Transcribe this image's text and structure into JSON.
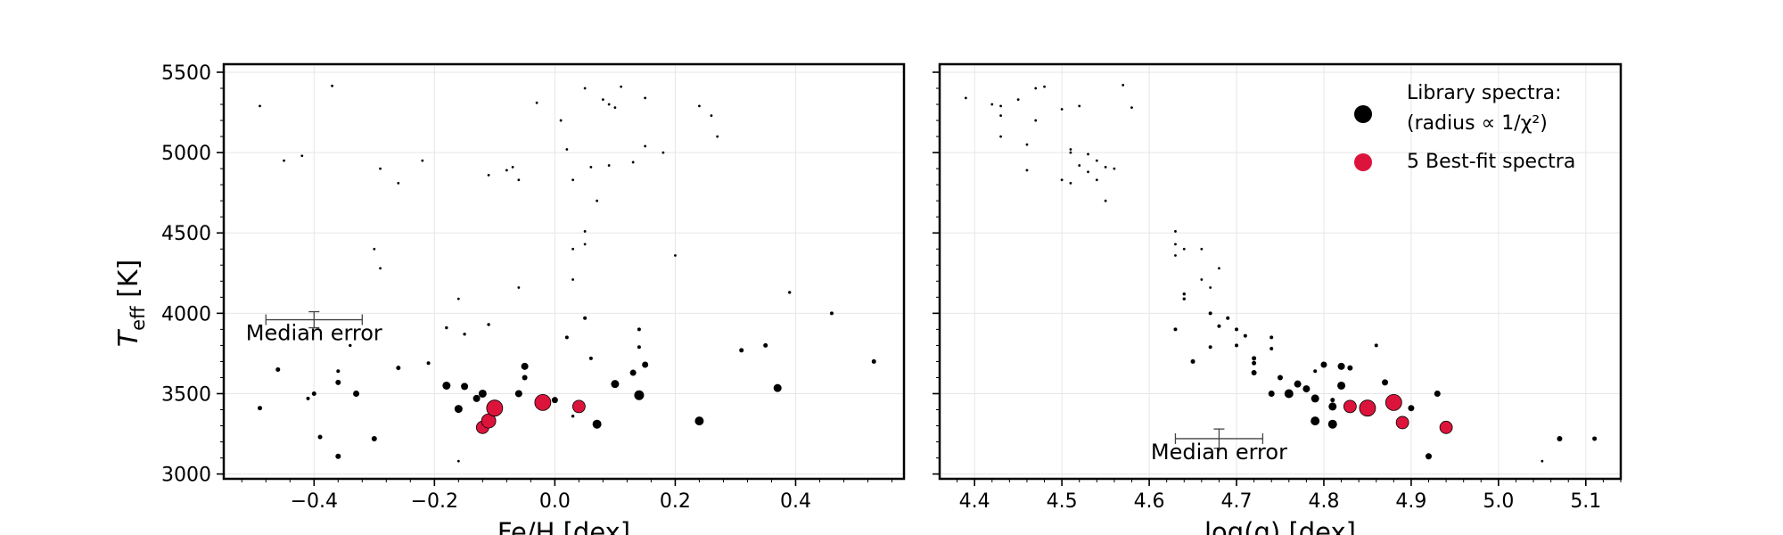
{
  "chart_data": [
    {
      "type": "scatter",
      "xlabel": "Fe/H [dex]",
      "ylabel": "T_eff [K]",
      "xlim": [
        -0.55,
        0.58
      ],
      "ylim": [
        2970,
        5550
      ],
      "x_ticks": [
        -0.4,
        -0.2,
        0.0,
        0.2,
        0.4
      ],
      "x_tick_labels": [
        "−0.4",
        "−0.2",
        "0.0",
        "0.2",
        "0.4"
      ],
      "y_ticks": [
        3000,
        3500,
        4000,
        4500,
        5000,
        5500
      ],
      "y_tick_labels": [
        "3000",
        "3500",
        "4000",
        "4500",
        "5000",
        "5500"
      ],
      "grid": true,
      "annotation": "Median error",
      "median_error": {
        "x": -0.4,
        "y": 3960,
        "xerr": 0.08,
        "yerr": 50
      },
      "series": [
        {
          "name": "Library spectra:",
          "color": "#000000",
          "points": [
            {
              "x": -0.49,
              "y": 5290,
              "r": 1.4
            },
            {
              "x": -0.37,
              "y": 5415,
              "r": 1.4
            },
            {
              "x": -0.45,
              "y": 4950,
              "r": 1.4
            },
            {
              "x": -0.42,
              "y": 4980,
              "r": 1.4
            },
            {
              "x": -0.29,
              "y": 4900,
              "r": 1.4
            },
            {
              "x": -0.26,
              "y": 4810,
              "r": 1.4
            },
            {
              "x": -0.22,
              "y": 4950,
              "r": 1.4
            },
            {
              "x": -0.3,
              "y": 4400,
              "r": 1.4
            },
            {
              "x": -0.29,
              "y": 4280,
              "r": 1.4
            },
            {
              "x": -0.11,
              "y": 4860,
              "r": 1.4
            },
            {
              "x": -0.08,
              "y": 4890,
              "r": 1.4
            },
            {
              "x": -0.07,
              "y": 4910,
              "r": 1.4
            },
            {
              "x": -0.06,
              "y": 4830,
              "r": 1.4
            },
            {
              "x": -0.03,
              "y": 5310,
              "r": 1.4
            },
            {
              "x": 0.01,
              "y": 5200,
              "r": 1.4
            },
            {
              "x": 0.02,
              "y": 5020,
              "r": 1.4
            },
            {
              "x": 0.03,
              "y": 4830,
              "r": 1.4
            },
            {
              "x": 0.05,
              "y": 5400,
              "r": 1.4
            },
            {
              "x": 0.08,
              "y": 5330,
              "r": 1.4
            },
            {
              "x": 0.09,
              "y": 5300,
              "r": 1.4
            },
            {
              "x": 0.1,
              "y": 5280,
              "r": 1.4
            },
            {
              "x": 0.11,
              "y": 5410,
              "r": 1.4
            },
            {
              "x": 0.06,
              "y": 4910,
              "r": 1.4
            },
            {
              "x": 0.09,
              "y": 4920,
              "r": 1.4
            },
            {
              "x": 0.13,
              "y": 4940,
              "r": 1.4
            },
            {
              "x": 0.15,
              "y": 5340,
              "r": 1.4
            },
            {
              "x": 0.18,
              "y": 5000,
              "r": 1.4
            },
            {
              "x": 0.15,
              "y": 5040,
              "r": 1.4
            },
            {
              "x": 0.24,
              "y": 5290,
              "r": 1.4
            },
            {
              "x": 0.26,
              "y": 5230,
              "r": 1.4
            },
            {
              "x": 0.27,
              "y": 5100,
              "r": 1.4
            },
            {
              "x": 0.07,
              "y": 4700,
              "r": 1.4
            },
            {
              "x": 0.05,
              "y": 4510,
              "r": 1.4
            },
            {
              "x": 0.05,
              "y": 4430,
              "r": 1.4
            },
            {
              "x": 0.03,
              "y": 4400,
              "r": 1.4
            },
            {
              "x": 0.03,
              "y": 4210,
              "r": 1.4
            },
            {
              "x": -0.06,
              "y": 4160,
              "r": 1.4
            },
            {
              "x": 0.2,
              "y": 4360,
              "r": 1.4
            },
            {
              "x": 0.39,
              "y": 4130,
              "r": 1.7
            },
            {
              "x": 0.46,
              "y": 4000,
              "r": 2.0
            },
            {
              "x": -0.16,
              "y": 4090,
              "r": 1.4
            },
            {
              "x": -0.11,
              "y": 3930,
              "r": 1.7
            },
            {
              "x": -0.18,
              "y": 3910,
              "r": 1.7
            },
            {
              "x": -0.15,
              "y": 3870,
              "r": 1.7
            },
            {
              "x": -0.34,
              "y": 3800,
              "r": 1.7
            },
            {
              "x": 0.02,
              "y": 3850,
              "r": 2.0
            },
            {
              "x": 0.05,
              "y": 3970,
              "r": 2.0
            },
            {
              "x": 0.14,
              "y": 3900,
              "r": 2.0
            },
            {
              "x": 0.14,
              "y": 3790,
              "r": 2.0
            },
            {
              "x": 0.06,
              "y": 3720,
              "r": 2.0
            },
            {
              "x": 0.31,
              "y": 3770,
              "r": 2.5
            },
            {
              "x": 0.35,
              "y": 3800,
              "r": 2.5
            },
            {
              "x": 0.53,
              "y": 3700,
              "r": 2.5
            },
            {
              "x": -0.46,
              "y": 3650,
              "r": 2.5
            },
            {
              "x": -0.36,
              "y": 3640,
              "r": 2.0
            },
            {
              "x": -0.26,
              "y": 3660,
              "r": 2.5
            },
            {
              "x": -0.21,
              "y": 3690,
              "r": 2.0
            },
            {
              "x": -0.49,
              "y": 3410,
              "r": 2.5
            },
            {
              "x": -0.41,
              "y": 3470,
              "r": 2.0
            },
            {
              "x": -0.4,
              "y": 3500,
              "r": 2.5
            },
            {
              "x": -0.36,
              "y": 3570,
              "r": 3.0
            },
            {
              "x": -0.33,
              "y": 3500,
              "r": 3.5
            },
            {
              "x": -0.39,
              "y": 3230,
              "r": 2.5
            },
            {
              "x": -0.36,
              "y": 3110,
              "r": 3.0
            },
            {
              "x": -0.3,
              "y": 3220,
              "r": 3.0
            },
            {
              "x": -0.16,
              "y": 3080,
              "r": 1.4
            },
            {
              "x": -0.18,
              "y": 3550,
              "r": 4.5
            },
            {
              "x": -0.15,
              "y": 3545,
              "r": 4.0
            },
            {
              "x": -0.16,
              "y": 3405,
              "r": 4.5
            },
            {
              "x": -0.12,
              "y": 3500,
              "r": 4.5
            },
            {
              "x": -0.13,
              "y": 3470,
              "r": 4.0
            },
            {
              "x": -0.06,
              "y": 3500,
              "r": 4.0
            },
            {
              "x": -0.05,
              "y": 3600,
              "r": 3.0
            },
            {
              "x": -0.05,
              "y": 3670,
              "r": 4.0
            },
            {
              "x": 0.0,
              "y": 3460,
              "r": 3.5
            },
            {
              "x": 0.03,
              "y": 3360,
              "r": 1.7
            },
            {
              "x": 0.07,
              "y": 3310,
              "r": 5.0
            },
            {
              "x": 0.1,
              "y": 3560,
              "r": 4.5
            },
            {
              "x": 0.13,
              "y": 3630,
              "r": 3.5
            },
            {
              "x": 0.15,
              "y": 3680,
              "r": 3.5
            },
            {
              "x": 0.14,
              "y": 3490,
              "r": 5.5
            },
            {
              "x": 0.24,
              "y": 3330,
              "r": 5.0
            },
            {
              "x": 0.37,
              "y": 3535,
              "r": 4.5
            }
          ]
        },
        {
          "name": "5 Best-fit spectra",
          "color": "#dc143c",
          "points": [
            {
              "x": -0.12,
              "y": 3290,
              "r": 7.0
            },
            {
              "x": -0.11,
              "y": 3330,
              "r": 8.0
            },
            {
              "x": -0.1,
              "y": 3410,
              "r": 9.0
            },
            {
              "x": -0.02,
              "y": 3445,
              "r": 9.0
            },
            {
              "x": 0.04,
              "y": 3420,
              "r": 7.0
            }
          ]
        }
      ]
    },
    {
      "type": "scatter",
      "xlabel": "log(g) [dex]",
      "xlim": [
        4.36,
        5.14
      ],
      "ylim": [
        2970,
        5550
      ],
      "x_ticks": [
        4.4,
        4.5,
        4.6,
        4.7,
        4.8,
        4.9,
        5.0,
        5.1
      ],
      "x_tick_labels": [
        "4.4",
        "4.5",
        "4.6",
        "4.7",
        "4.8",
        "4.9",
        "5.0",
        "5.1"
      ],
      "y_ticks": [
        3000,
        3500,
        4000,
        4500,
        5000,
        5500
      ],
      "grid": true,
      "annotation": "Median error",
      "median_error": {
        "x": 4.68,
        "y": 3220,
        "xerr": 0.05,
        "yerr": 60
      },
      "legend": {
        "placement": "top-right",
        "library_line1": "Library spectra:",
        "library_line2": "(radius ∝ 1/χ²)",
        "bestfit": "5 Best-fit spectra"
      },
      "series": [
        {
          "name": "Library spectra:",
          "color": "#000000",
          "points": [
            {
              "x": 4.39,
              "y": 5340,
              "r": 1.4
            },
            {
              "x": 4.42,
              "y": 5300,
              "r": 1.4
            },
            {
              "x": 4.43,
              "y": 5290,
              "r": 1.4
            },
            {
              "x": 4.45,
              "y": 5330,
              "r": 1.4
            },
            {
              "x": 4.47,
              "y": 5400,
              "r": 1.4
            },
            {
              "x": 4.48,
              "y": 5410,
              "r": 1.4
            },
            {
              "x": 4.43,
              "y": 5230,
              "r": 1.4
            },
            {
              "x": 4.47,
              "y": 5200,
              "r": 1.4
            },
            {
              "x": 4.5,
              "y": 5270,
              "r": 1.4
            },
            {
              "x": 4.52,
              "y": 5290,
              "r": 1.4
            },
            {
              "x": 4.57,
              "y": 5420,
              "r": 1.4
            },
            {
              "x": 4.58,
              "y": 5280,
              "r": 1.4
            },
            {
              "x": 4.43,
              "y": 5100,
              "r": 1.4
            },
            {
              "x": 4.46,
              "y": 5050,
              "r": 1.4
            },
            {
              "x": 4.51,
              "y": 5000,
              "r": 1.4
            },
            {
              "x": 4.51,
              "y": 5020,
              "r": 1.4
            },
            {
              "x": 4.53,
              "y": 4990,
              "r": 1.4
            },
            {
              "x": 4.54,
              "y": 4950,
              "r": 1.4
            },
            {
              "x": 4.52,
              "y": 4920,
              "r": 1.4
            },
            {
              "x": 4.55,
              "y": 4910,
              "r": 1.4
            },
            {
              "x": 4.56,
              "y": 4900,
              "r": 1.4
            },
            {
              "x": 4.53,
              "y": 4880,
              "r": 1.4
            },
            {
              "x": 4.54,
              "y": 4830,
              "r": 1.4
            },
            {
              "x": 4.5,
              "y": 4830,
              "r": 1.4
            },
            {
              "x": 4.51,
              "y": 4810,
              "r": 1.4
            },
            {
              "x": 4.46,
              "y": 4890,
              "r": 1.4
            },
            {
              "x": 4.55,
              "y": 4700,
              "r": 1.4
            },
            {
              "x": 4.63,
              "y": 4510,
              "r": 1.4
            },
            {
              "x": 4.63,
              "y": 4430,
              "r": 1.4
            },
            {
              "x": 4.63,
              "y": 4360,
              "r": 1.4
            },
            {
              "x": 4.64,
              "y": 4400,
              "r": 1.4
            },
            {
              "x": 4.66,
              "y": 4400,
              "r": 1.4
            },
            {
              "x": 4.68,
              "y": 4280,
              "r": 1.4
            },
            {
              "x": 4.66,
              "y": 4210,
              "r": 1.4
            },
            {
              "x": 4.67,
              "y": 4160,
              "r": 1.4
            },
            {
              "x": 4.64,
              "y": 4120,
              "r": 1.7
            },
            {
              "x": 4.64,
              "y": 4090,
              "r": 1.7
            },
            {
              "x": 4.67,
              "y": 4000,
              "r": 2.0
            },
            {
              "x": 4.69,
              "y": 3970,
              "r": 2.0
            },
            {
              "x": 4.68,
              "y": 3920,
              "r": 2.0
            },
            {
              "x": 4.7,
              "y": 3900,
              "r": 2.0
            },
            {
              "x": 4.71,
              "y": 3860,
              "r": 2.0
            },
            {
              "x": 4.63,
              "y": 3900,
              "r": 2.0
            },
            {
              "x": 4.67,
              "y": 3790,
              "r": 2.0
            },
            {
              "x": 4.7,
              "y": 3800,
              "r": 2.0
            },
            {
              "x": 4.74,
              "y": 3850,
              "r": 2.0
            },
            {
              "x": 4.74,
              "y": 3780,
              "r": 2.0
            },
            {
              "x": 4.86,
              "y": 3800,
              "r": 2.0
            },
            {
              "x": 4.65,
              "y": 3700,
              "r": 2.5
            },
            {
              "x": 4.72,
              "y": 3720,
              "r": 2.5
            },
            {
              "x": 4.72,
              "y": 3690,
              "r": 2.5
            },
            {
              "x": 4.72,
              "y": 3630,
              "r": 3.0
            },
            {
              "x": 4.75,
              "y": 3600,
              "r": 3.0
            },
            {
              "x": 4.79,
              "y": 3640,
              "r": 2.0
            },
            {
              "x": 4.8,
              "y": 3680,
              "r": 3.5
            },
            {
              "x": 4.82,
              "y": 3670,
              "r": 4.0
            },
            {
              "x": 4.83,
              "y": 3660,
              "r": 3.0
            },
            {
              "x": 4.77,
              "y": 3560,
              "r": 4.0
            },
            {
              "x": 4.78,
              "y": 3530,
              "r": 4.0
            },
            {
              "x": 4.76,
              "y": 3500,
              "r": 5.0
            },
            {
              "x": 4.74,
              "y": 3500,
              "r": 3.5
            },
            {
              "x": 4.79,
              "y": 3470,
              "r": 4.5
            },
            {
              "x": 4.82,
              "y": 3550,
              "r": 4.5
            },
            {
              "x": 4.81,
              "y": 3420,
              "r": 4.5
            },
            {
              "x": 4.81,
              "y": 3460,
              "r": 2.5
            },
            {
              "x": 4.87,
              "y": 3570,
              "r": 3.5
            },
            {
              "x": 4.93,
              "y": 3500,
              "r": 3.5
            },
            {
              "x": 4.9,
              "y": 3410,
              "r": 3.5
            },
            {
              "x": 4.79,
              "y": 3330,
              "r": 5.0
            },
            {
              "x": 4.81,
              "y": 3310,
              "r": 5.0
            },
            {
              "x": 4.92,
              "y": 3110,
              "r": 3.5
            },
            {
              "x": 5.05,
              "y": 3080,
              "r": 1.4
            },
            {
              "x": 5.07,
              "y": 3220,
              "r": 3.0
            },
            {
              "x": 5.11,
              "y": 3220,
              "r": 2.5
            }
          ]
        },
        {
          "name": "5 Best-fit spectra",
          "color": "#dc143c",
          "points": [
            {
              "x": 4.83,
              "y": 3420,
              "r": 7.0
            },
            {
              "x": 4.85,
              "y": 3410,
              "r": 9.0
            },
            {
              "x": 4.88,
              "y": 3445,
              "r": 9.0
            },
            {
              "x": 4.89,
              "y": 3320,
              "r": 7.0
            },
            {
              "x": 4.94,
              "y": 3290,
              "r": 7.0
            }
          ]
        }
      ]
    }
  ]
}
